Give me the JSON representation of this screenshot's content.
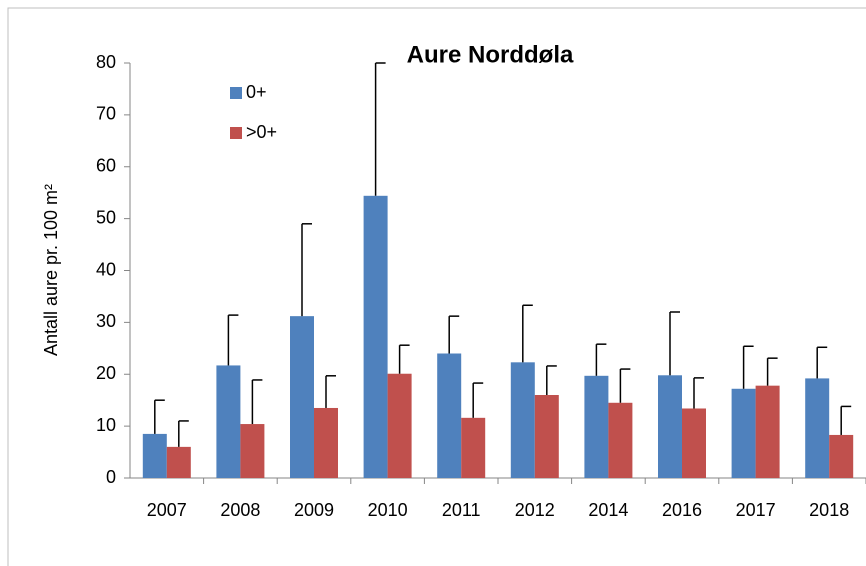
{
  "chart_data": {
    "type": "bar",
    "title": "Aure Norddøla",
    "y_label": "Antall aure pr. 100 m²",
    "categories": [
      "2007",
      "2008",
      "2009",
      "2010",
      "2011",
      "2012",
      "2014",
      "2016",
      "2017",
      "2018"
    ],
    "series": [
      {
        "name": "0+",
        "color": "#4f81bd",
        "values": [
          8.5,
          21.7,
          31.2,
          54.4,
          24,
          22.3,
          19.7,
          19.8,
          17.2,
          19.2
        ],
        "errors": [
          6.5,
          9.7,
          17.8,
          25.6,
          7.2,
          11,
          6.1,
          12.2,
          8.2,
          6
        ]
      },
      {
        "name": ">0+",
        "color": "#c0504d",
        "values": [
          6,
          10.4,
          13.5,
          20.1,
          11.6,
          16,
          14.5,
          13.4,
          17.8,
          8.3
        ],
        "errors": [
          5,
          8.5,
          6.2,
          5.5,
          6.7,
          5.6,
          6.5,
          5.9,
          5.3,
          5.5
        ]
      }
    ],
    "ylim": [
      0,
      80
    ],
    "yticks": [
      0,
      10,
      20,
      30,
      40,
      50,
      60,
      70,
      80
    ],
    "legend": "upper-left"
  }
}
